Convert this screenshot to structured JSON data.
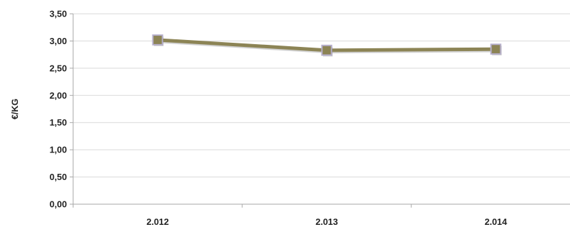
{
  "chart_data": {
    "type": "line",
    "title": "",
    "xlabel": "",
    "ylabel": "€/KG",
    "categories": [
      "2.012",
      "2.013",
      "2.014"
    ],
    "series": [
      {
        "values": [
          3.02,
          2.83,
          2.85
        ]
      }
    ],
    "ylim": [
      0,
      3.5
    ],
    "yticks": [
      "0,00",
      "0,50",
      "1,00",
      "1,50",
      "2,00",
      "2,50",
      "3,00",
      "3,50"
    ],
    "grid": true,
    "legend": "none",
    "colors": {
      "line": "#8c8455",
      "marker_fill": "#8c8455",
      "marker_edge": "#b7b0cc",
      "grid": "#d9d9d9",
      "axis": "#a6a6a6"
    }
  }
}
